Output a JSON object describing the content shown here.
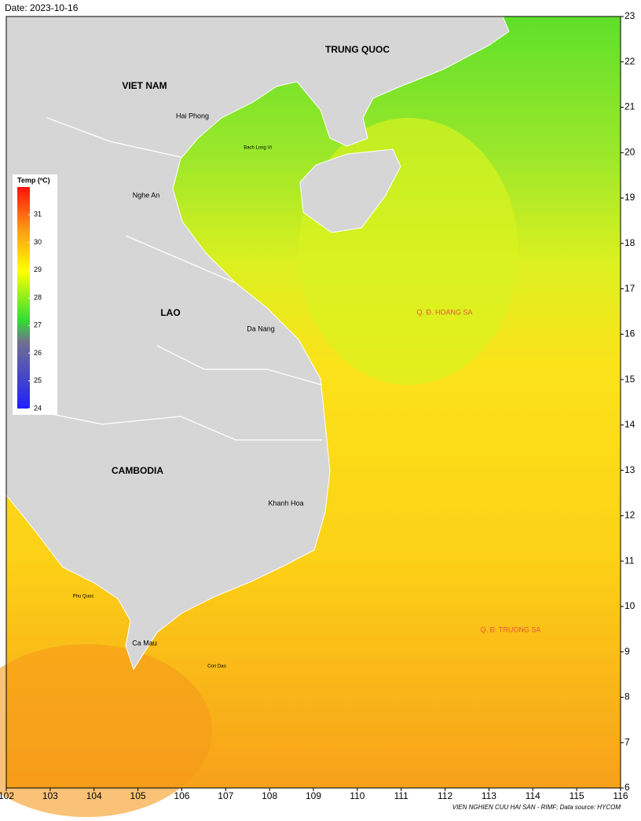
{
  "date_label": "Date: 2023-10-16",
  "axes": {
    "xlim": [
      102,
      116
    ],
    "ylim": [
      6,
      23
    ],
    "xticks": [
      102,
      103,
      104,
      105,
      106,
      107,
      108,
      109,
      110,
      111,
      112,
      113,
      114,
      115,
      116
    ],
    "yticks": [
      6,
      7,
      8,
      9,
      10,
      11,
      12,
      13,
      14,
      15,
      16,
      17,
      18,
      19,
      20,
      21,
      22,
      23
    ]
  },
  "legend": {
    "title": "Temp (ºC)",
    "lim": [
      24,
      32
    ],
    "ticks": [
      24,
      25,
      26,
      27,
      28,
      29,
      30,
      31
    ]
  },
  "places": [
    {
      "label": "TRUNG QUOC"
    },
    {
      "label": "VIET NAM"
    },
    {
      "label": "Hai Phong"
    },
    {
      "label": "Bach Long Vi"
    },
    {
      "label": "Nghe An"
    },
    {
      "label": "LAO"
    },
    {
      "label": "Da Nang"
    },
    {
      "label": "CAMBODIA"
    },
    {
      "label": "Khanh Hoa"
    },
    {
      "label": "Phu Quoc"
    },
    {
      "label": "Ca Mau"
    },
    {
      "label": "Con Dao"
    },
    {
      "label": "Q. Đ. HOANG SA"
    },
    {
      "label": "Q. Đ. TRUONG SA"
    }
  ],
  "credit": "VIEN NGHIEN CUU HAI SAN - RIMF; Data source: HYCOM"
}
